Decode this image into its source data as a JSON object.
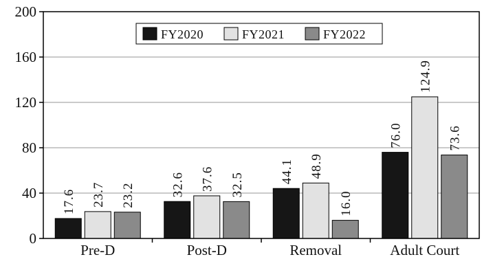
{
  "chart_data": {
    "type": "bar",
    "title": "",
    "xlabel": "",
    "ylabel": "",
    "ylim": [
      0,
      200
    ],
    "yticks": [
      0,
      40,
      80,
      120,
      160,
      200
    ],
    "grid": true,
    "legend_position": "top-center",
    "categories": [
      "Pre-D",
      "Post-D",
      "Removal",
      "Adult Court"
    ],
    "series": [
      {
        "name": "FY2020",
        "color": "#161616",
        "values": [
          17.6,
          32.6,
          44.1,
          76.0
        ],
        "labels": [
          "17.6",
          "32.6",
          "44.1",
          "76.0"
        ]
      },
      {
        "name": "FY2021",
        "color": "#e2e2e2",
        "values": [
          23.7,
          37.6,
          48.9,
          124.9
        ],
        "labels": [
          "23.7",
          "37.6",
          "48.9",
          "124.9"
        ]
      },
      {
        "name": "FY2022",
        "color": "#8a8a8a",
        "values": [
          23.2,
          32.5,
          16.0,
          73.6
        ],
        "labels": [
          "23.2",
          "32.5",
          "16.0",
          "73.6"
        ]
      }
    ]
  }
}
